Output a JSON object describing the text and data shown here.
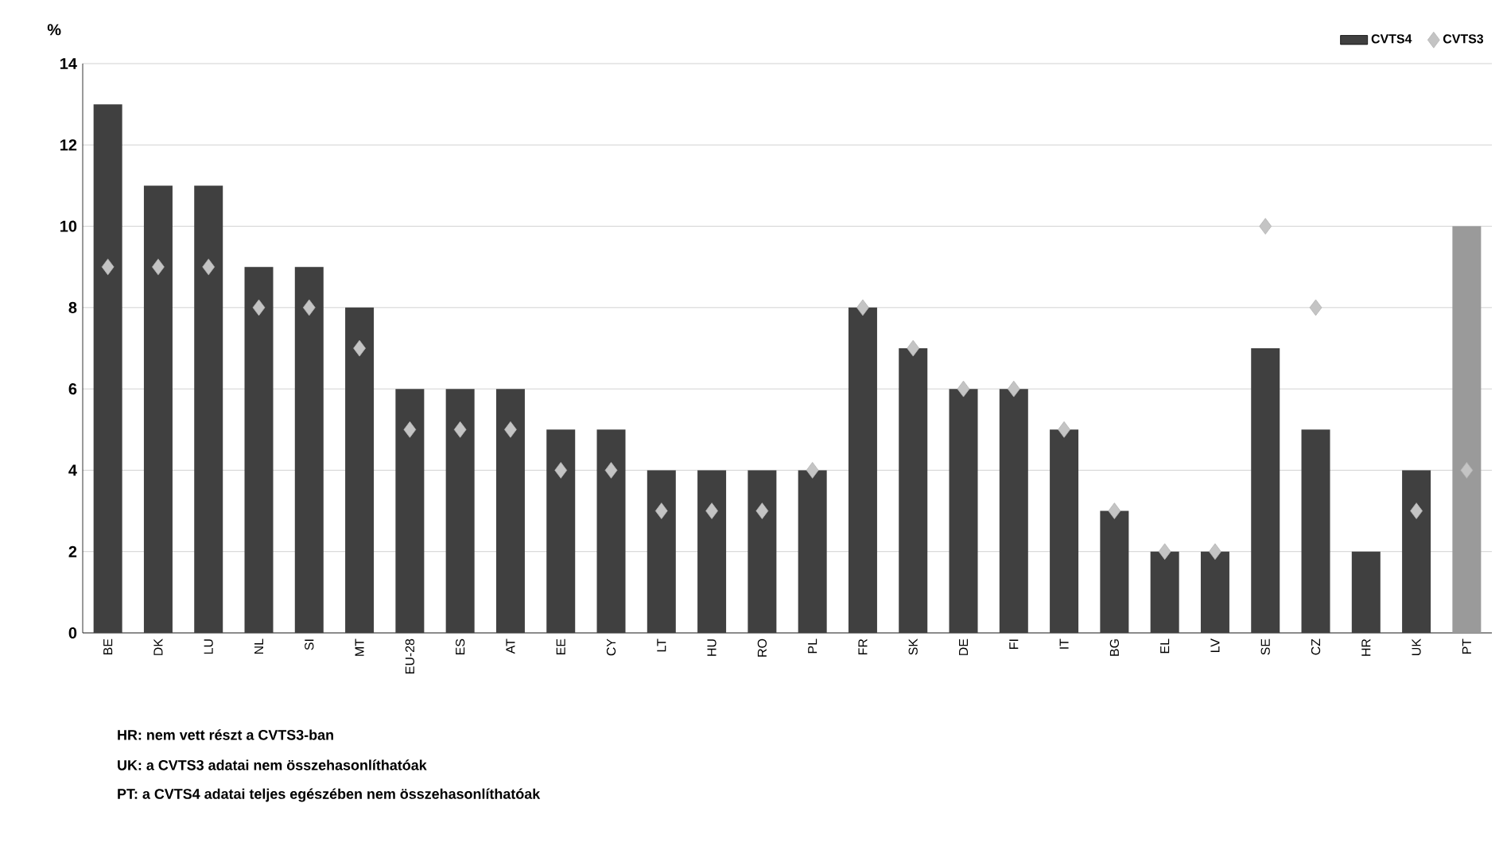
{
  "chart_data": {
    "type": "bar",
    "ylabel": "%",
    "categories": [
      "BE",
      "DK",
      "LU",
      "NL",
      "SI",
      "MT",
      "EU-28",
      "ES",
      "AT",
      "EE",
      "CY",
      "LT",
      "HU",
      "RO",
      "PL",
      "FR",
      "SK",
      "DE",
      "FI",
      "IT",
      "BG",
      "EL",
      "LV",
      "SE",
      "CZ",
      "HR",
      "UK",
      "PT"
    ],
    "series": [
      {
        "name": "CVTS4",
        "color": "#404040",
        "colors": [
          "#404040",
          "#404040",
          "#404040",
          "#404040",
          "#404040",
          "#404040",
          "#404040",
          "#404040",
          "#404040",
          "#404040",
          "#404040",
          "#404040",
          "#404040",
          "#404040",
          "#404040",
          "#404040",
          "#404040",
          "#404040",
          "#404040",
          "#404040",
          "#404040",
          "#404040",
          "#404040",
          "#404040",
          "#404040",
          "#404040",
          "#404040",
          "#9a9a9a"
        ],
        "values": [
          13,
          11,
          11,
          9,
          9,
          8,
          6,
          6,
          6,
          5,
          5,
          4,
          4,
          4,
          4,
          8,
          7,
          6,
          6,
          5,
          3,
          2,
          2,
          7,
          5,
          2,
          4,
          10
        ]
      },
      {
        "name": "CVTS3",
        "type": "scatter",
        "color": "#c4c4c4",
        "values": [
          9,
          9,
          9,
          8,
          8,
          7,
          5,
          5,
          5,
          4,
          4,
          3,
          3,
          3,
          4,
          8,
          7,
          6,
          6,
          5,
          3,
          2,
          2,
          10,
          8,
          null,
          3,
          4
        ]
      }
    ],
    "ylim": [
      0,
      14
    ],
    "yticks": [
      0,
      2,
      4,
      6,
      8,
      10,
      12,
      14
    ],
    "grid": "y",
    "legend": "top right",
    "marker": "diamond",
    "annotations": [
      "HR: nem vett részt a CVTS3-ban",
      "UK: a CVTS3 adatai nem összehasonlíthatóak",
      "PT: a CVTS4 adatai teljes egészében nem összehasonlíthatóak"
    ]
  }
}
